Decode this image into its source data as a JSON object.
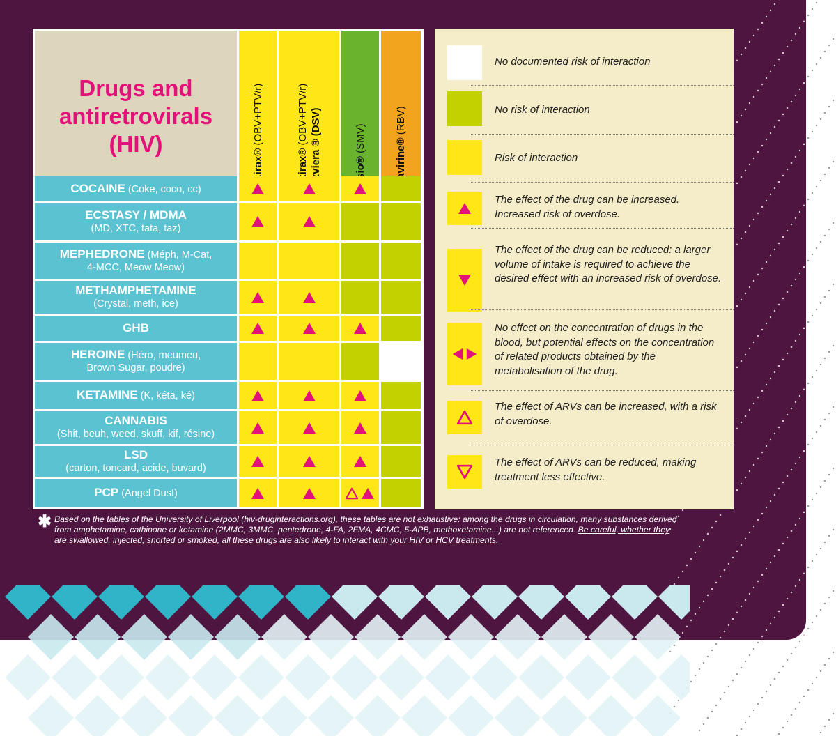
{
  "title_lines": [
    "Drugs and",
    "antiretrovirals",
    "(HIV)"
  ],
  "columns": [
    {
      "brand": "Viekirax®",
      "detail": "(OBV+PTV/r)",
      "line2": "",
      "color": "#ffe617"
    },
    {
      "brand": "Viekirax®",
      "detail": "(OBV+PTV/r)",
      "line2": "+ Exviera ® (DSV)",
      "color": "#ffe617"
    },
    {
      "brand": "Olysio®",
      "detail": "(SMV)",
      "line2": "",
      "color": "#6ab42d"
    },
    {
      "brand": "Ribavirine®",
      "detail": "(RBV)",
      "line2": "",
      "color": "#f2a41f"
    }
  ],
  "rows": [
    {
      "name": "COCAINE",
      "alias_inline": "(Coke, coco, cc)",
      "alias": "",
      "cells": [
        "up",
        "up",
        "up",
        "green"
      ]
    },
    {
      "name": "ECSTASY / MDMA",
      "alias_inline": "",
      "alias": "(MD, XTC, tata, taz)",
      "cells": [
        "up",
        "up",
        "green",
        "green"
      ]
    },
    {
      "name": "MEPHEDRONE",
      "alias_inline": "(Méph, M-Cat,",
      "alias": "4-MCC, Meow Meow)",
      "cells": [
        "yellow",
        "yellow",
        "green",
        "green"
      ]
    },
    {
      "name": "METHAMPHETAMINE",
      "alias_inline": "",
      "alias": "(Crystal, meth, ice)",
      "cells": [
        "up",
        "up",
        "green",
        "green"
      ]
    },
    {
      "name": "GHB",
      "alias_inline": "",
      "alias": "",
      "cells": [
        "up",
        "up",
        "up",
        "green"
      ]
    },
    {
      "name": "HEROINE",
      "alias_inline": "(Héro, meumeu,",
      "alias": "Brown Sugar, poudre)",
      "cells": [
        "yellow",
        "yellow",
        "green",
        "white"
      ]
    },
    {
      "name": "KETAMINE",
      "alias_inline": "(K, kéta, ké)",
      "alias": "",
      "cells": [
        "up",
        "up",
        "up",
        "green"
      ]
    },
    {
      "name": "CANNABIS",
      "alias_inline": "",
      "alias": "(Shit, beuh, weed, skuff, kif, résine)",
      "cells": [
        "up",
        "up",
        "up",
        "green"
      ]
    },
    {
      "name": "LSD",
      "alias_inline": "",
      "alias": "(carton, toncard, acide, buvard)",
      "cells": [
        "up",
        "up",
        "up",
        "green"
      ]
    },
    {
      "name": "PCP",
      "alias_inline": "(Angel Dust)",
      "alias": "",
      "cells": [
        "up",
        "up",
        "arv-up+up",
        "green"
      ]
    }
  ],
  "legend": [
    {
      "icon": "white-swatch",
      "text": "No documented risk of interaction"
    },
    {
      "icon": "green-swatch",
      "text": "No risk of interaction"
    },
    {
      "icon": "yellow-swatch",
      "text": "Risk of interaction"
    },
    {
      "icon": "up-triangle-icon",
      "text": "The effect of the drug can be increased. Increased risk of overdose."
    },
    {
      "icon": "down-triangle-icon",
      "text": "The effect of the drug can be reduced: a larger volume of intake is required to achieve the desired effect with an increased risk of overdose."
    },
    {
      "icon": "left-right-triangles-icon",
      "text": "No effect on the concentration of drugs in the blood, but potential effects on the concentration of related products obtained by the metabolisation of the drug."
    },
    {
      "icon": "outline-up-triangle-icon",
      "text": "The effect of ARVs can be increased, with a risk of overdose."
    },
    {
      "icon": "outline-down-triangle-icon",
      "text": "The effect of ARVs can be reduced, making treatment less effective."
    }
  ],
  "footnote": {
    "star": "✱",
    "text": "Based on the tables of the University of Liverpool (hiv-druginteractions.org), these tables are not exhaustive: among the drugs in circulation, many substances derived from amphetamine, cathinone or ketamine (2MMC, 3MMC, pentedrone, 4-FA, 2FMA, 4CMC, 5-APB, methoxetamine...) are not referenced.",
    "underlined": "Be careful, whether they are swallowed, injected, snorted or smoked, all these drugs are also likely to interact with your HIV or HCV treatments."
  },
  "colors": {
    "background": "#4d1540",
    "title_pink": "#e2127a",
    "row_blue": "#5bc2d1",
    "yellow": "#ffe617",
    "lime": "#c3d100",
    "magenta": "#e2127a",
    "legend_bg": "#f5edca"
  }
}
